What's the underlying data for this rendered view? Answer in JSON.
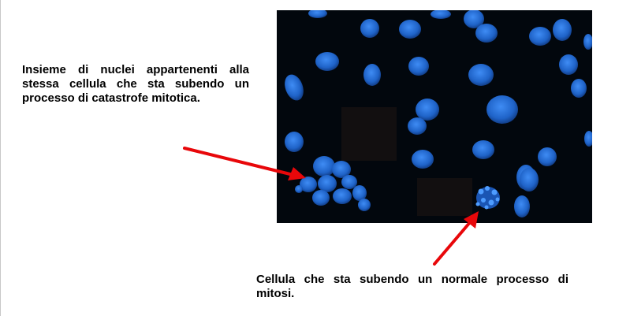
{
  "captions": {
    "catastrophe": "Insieme di nuclei appartenenti alla stessa cellula che sta subendo un processo di catastrofe mitotica.",
    "mitosis": "Cellula che sta subendo un normale processo di mitosi."
  },
  "image": {
    "subject": "fluorescence-micrograph-blue-nuclei",
    "background_color": "#02070d",
    "nucleus_color": "#1f63c8",
    "redaction_color": "#120f10"
  },
  "annotations": {
    "arrow_color": "#e8070a"
  }
}
